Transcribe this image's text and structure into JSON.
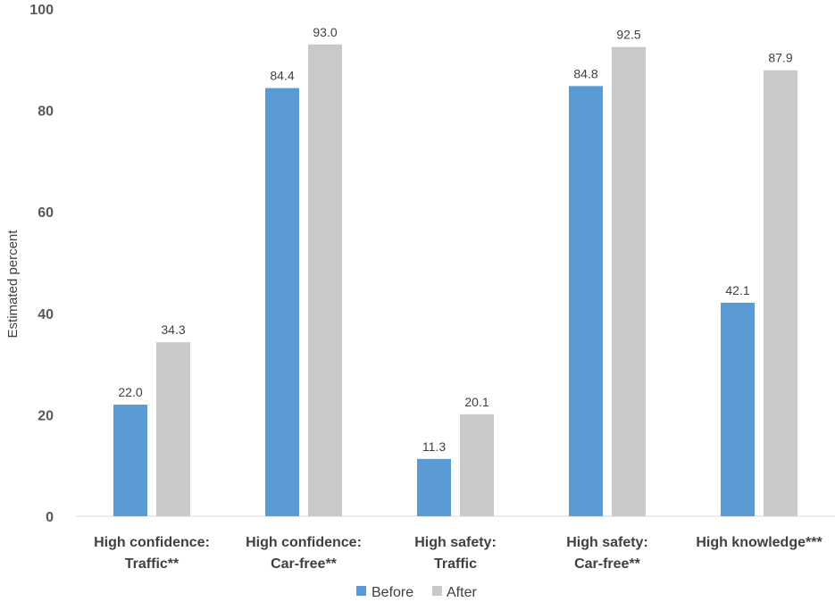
{
  "chart_data": {
    "type": "bar",
    "title": "",
    "xlabel": "",
    "ylabel": "Estimated percent",
    "ylim": [
      0,
      100
    ],
    "yticks": [
      0,
      20,
      40,
      60,
      80,
      100
    ],
    "categories": [
      [
        "High confidence:",
        "Traffic**"
      ],
      [
        "High confidence:",
        "Car-free**"
      ],
      [
        "High safety:",
        "Traffic"
      ],
      [
        "High safety:",
        "Car-free**"
      ],
      [
        "High knowledge***"
      ]
    ],
    "series": [
      {
        "name": "Before",
        "color": "#5b9bd5",
        "values": [
          22.0,
          84.4,
          11.3,
          84.8,
          42.1
        ],
        "labels": [
          "22.0",
          "84.4",
          "11.3",
          "84.8",
          "42.1"
        ]
      },
      {
        "name": "After",
        "color": "#c9c9c9",
        "values": [
          34.3,
          93.0,
          20.1,
          92.5,
          87.9
        ],
        "labels": [
          "34.3",
          "93.0",
          "20.1",
          "92.5",
          "87.9"
        ]
      }
    ],
    "grid": false,
    "legend": "bottom-center"
  }
}
